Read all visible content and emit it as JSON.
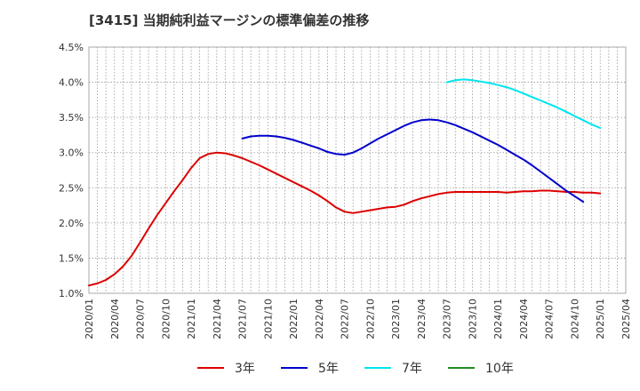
{
  "chart_data": {
    "type": "line",
    "title": "[3415]  当期純利益マージンの標準偏差の推移",
    "xlabel": "",
    "ylabel": "",
    "x_ticks": [
      "2020/01",
      "2020/04",
      "2020/07",
      "2020/10",
      "2021/01",
      "2021/04",
      "2021/07",
      "2021/10",
      "2022/01",
      "2022/04",
      "2022/07",
      "2022/10",
      "2023/01",
      "2023/04",
      "2023/07",
      "2023/10",
      "2024/01",
      "2024/04",
      "2024/07",
      "2024/10",
      "2025/01",
      "2025/04"
    ],
    "y_ticks": [
      "1.0%",
      "1.5%",
      "2.0%",
      "2.5%",
      "3.0%",
      "3.5%",
      "4.0%",
      "4.5%"
    ],
    "ylim": [
      1.0,
      4.5
    ],
    "grid": true,
    "legend_position": "bottom",
    "series": [
      {
        "name": "3年",
        "color": "#dd0000",
        "points": [
          [
            "2020/01",
            1.11
          ],
          [
            "2020/02",
            1.14
          ],
          [
            "2020/03",
            1.19
          ],
          [
            "2020/04",
            1.27
          ],
          [
            "2020/05",
            1.38
          ],
          [
            "2020/06",
            1.53
          ],
          [
            "2020/07",
            1.72
          ],
          [
            "2020/08",
            1.92
          ],
          [
            "2020/09",
            2.11
          ],
          [
            "2020/10",
            2.28
          ],
          [
            "2020/11",
            2.45
          ],
          [
            "2020/12",
            2.61
          ],
          [
            "2020/13",
            2.78
          ],
          [
            "2021/02",
            2.92
          ],
          [
            "2021/03",
            2.98
          ],
          [
            "2021/04",
            3.0
          ],
          [
            "2021/05",
            2.99
          ],
          [
            "2021/06",
            2.96
          ],
          [
            "2021/07",
            2.92
          ],
          [
            "2021/08",
            2.87
          ],
          [
            "2021/09",
            2.82
          ],
          [
            "2021/10",
            2.76
          ],
          [
            "2021/11",
            2.7
          ],
          [
            "2021/12",
            2.64
          ],
          [
            "2022/01",
            2.58
          ],
          [
            "2022/02",
            2.52
          ],
          [
            "2022/03",
            2.46
          ],
          [
            "2022/04",
            2.39
          ],
          [
            "2022/05",
            2.31
          ],
          [
            "2022/06",
            2.22
          ],
          [
            "2022/07",
            2.16
          ],
          [
            "2022/08",
            2.14
          ],
          [
            "2022/09",
            2.16
          ],
          [
            "2022/10",
            2.18
          ],
          [
            "2022/11",
            2.2
          ],
          [
            "2022/12",
            2.22
          ],
          [
            "2023/01",
            2.23
          ],
          [
            "2023/02",
            2.26
          ],
          [
            "2023/03",
            2.31
          ],
          [
            "2023/04",
            2.35
          ],
          [
            "2023/05",
            2.38
          ],
          [
            "2023/06",
            2.41
          ],
          [
            "2023/07",
            2.43
          ],
          [
            "2023/08",
            2.44
          ],
          [
            "2023/09",
            2.44
          ],
          [
            "2023/10",
            2.44
          ],
          [
            "2023/11",
            2.44
          ],
          [
            "2023/12",
            2.44
          ],
          [
            "2024/01",
            2.44
          ],
          [
            "2024/02",
            2.43
          ],
          [
            "2024/03",
            2.44
          ],
          [
            "2024/04",
            2.45
          ],
          [
            "2024/05",
            2.45
          ],
          [
            "2024/06",
            2.46
          ],
          [
            "2024/07",
            2.46
          ],
          [
            "2024/08",
            2.45
          ],
          [
            "2024/09",
            2.44
          ],
          [
            "2024/10",
            2.44
          ],
          [
            "2024/11",
            2.43
          ],
          [
            "2024/12",
            2.43
          ],
          [
            "2025/01",
            2.42
          ]
        ]
      },
      {
        "name": "5年",
        "color": "#0000cc",
        "points": [
          [
            "2021/07",
            3.2
          ],
          [
            "2021/08",
            3.23
          ],
          [
            "2021/09",
            3.24
          ],
          [
            "2021/10",
            3.24
          ],
          [
            "2021/11",
            3.23
          ],
          [
            "2021/12",
            3.21
          ],
          [
            "2022/01",
            3.18
          ],
          [
            "2022/02",
            3.14
          ],
          [
            "2022/03",
            3.1
          ],
          [
            "2022/04",
            3.06
          ],
          [
            "2022/05",
            3.01
          ],
          [
            "2022/06",
            2.98
          ],
          [
            "2022/07",
            2.97
          ],
          [
            "2022/08",
            3.0
          ],
          [
            "2022/09",
            3.06
          ],
          [
            "2022/10",
            3.13
          ],
          [
            "2022/11",
            3.2
          ],
          [
            "2022/12",
            3.26
          ],
          [
            "2023/01",
            3.32
          ],
          [
            "2023/02",
            3.38
          ],
          [
            "2023/03",
            3.43
          ],
          [
            "2023/04",
            3.46
          ],
          [
            "2023/05",
            3.47
          ],
          [
            "2023/06",
            3.46
          ],
          [
            "2023/07",
            3.43
          ],
          [
            "2023/08",
            3.39
          ],
          [
            "2023/09",
            3.34
          ],
          [
            "2023/10",
            3.29
          ],
          [
            "2023/11",
            3.23
          ],
          [
            "2023/12",
            3.17
          ],
          [
            "2024/01",
            3.11
          ],
          [
            "2024/02",
            3.04
          ],
          [
            "2024/03",
            2.97
          ],
          [
            "2024/04",
            2.9
          ],
          [
            "2024/05",
            2.82
          ],
          [
            "2024/06",
            2.73
          ],
          [
            "2024/07",
            2.64
          ],
          [
            "2024/08",
            2.55
          ],
          [
            "2024/09",
            2.46
          ],
          [
            "2024/10",
            2.38
          ],
          [
            "2024/11",
            2.3
          ]
        ]
      },
      {
        "name": "7年",
        "color": "#00e5ee",
        "points": [
          [
            "2023/07",
            4.0
          ],
          [
            "2023/08",
            4.03
          ],
          [
            "2023/09",
            4.04
          ],
          [
            "2023/10",
            4.03
          ],
          [
            "2023/11",
            4.01
          ],
          [
            "2023/12",
            3.99
          ],
          [
            "2024/01",
            3.96
          ],
          [
            "2024/02",
            3.93
          ],
          [
            "2024/03",
            3.89
          ],
          [
            "2024/04",
            3.84
          ],
          [
            "2024/05",
            3.79
          ],
          [
            "2024/06",
            3.74
          ],
          [
            "2024/07",
            3.69
          ],
          [
            "2024/08",
            3.64
          ],
          [
            "2024/09",
            3.58
          ],
          [
            "2024/10",
            3.52
          ],
          [
            "2024/11",
            3.46
          ],
          [
            "2024/12",
            3.4
          ],
          [
            "2025/01",
            3.35
          ]
        ]
      },
      {
        "name": "10年",
        "color": "#228b22",
        "points": []
      }
    ]
  }
}
